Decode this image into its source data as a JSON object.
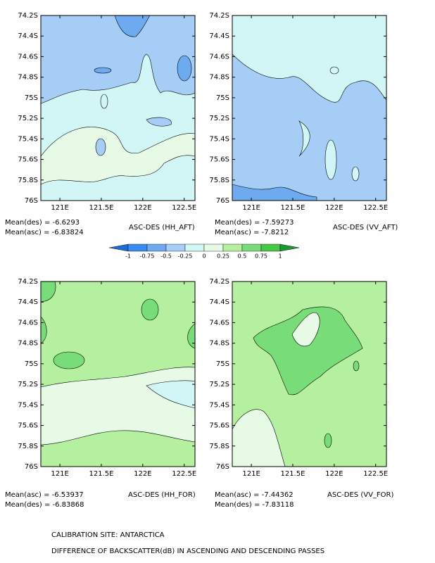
{
  "chart_data": [
    {
      "type": "contour",
      "title": "ASC-DES (HH_AFT)",
      "annotations": [
        "Mean(des) = -6.6293",
        "Mean(asc) = -6.83824"
      ],
      "xlim": [
        120.77,
        122.63
      ],
      "ylim": [
        76,
        74.2
      ],
      "xticks": [
        {
          "value": 121,
          "label": "121E"
        },
        {
          "value": 121.5,
          "label": "121.5E"
        },
        {
          "value": 122,
          "label": "122E"
        },
        {
          "value": 122.5,
          "label": "122.5E"
        }
      ],
      "yticks": [
        {
          "value": 74.2,
          "label": "74.2S"
        },
        {
          "value": 74.4,
          "label": "74.4S"
        },
        {
          "value": 74.6,
          "label": "74.6S"
        },
        {
          "value": 74.8,
          "label": "74.8S"
        },
        {
          "value": 75,
          "label": "75S"
        },
        {
          "value": 75.2,
          "label": "75.2S"
        },
        {
          "value": 75.4,
          "label": "75.4S"
        },
        {
          "value": 75.6,
          "label": "75.6S"
        },
        {
          "value": 75.8,
          "label": "75.8S"
        },
        {
          "value": 76,
          "label": "76S"
        }
      ]
    },
    {
      "type": "contour",
      "title": "ASC-DES (VV_AFT)",
      "annotations": [
        "Mean(des) = -7.59273",
        "Mean(asc) = -7.8212"
      ],
      "xlim": [
        120.77,
        122.63
      ],
      "ylim": [
        76,
        74.2
      ],
      "xticks": [
        {
          "value": 121,
          "label": "121E"
        },
        {
          "value": 121.5,
          "label": "121.5E"
        },
        {
          "value": 122,
          "label": "122E"
        },
        {
          "value": 122.5,
          "label": "122.5E"
        }
      ],
      "yticks": [
        {
          "value": 74.2,
          "label": "74.2S"
        },
        {
          "value": 74.4,
          "label": "74.4S"
        },
        {
          "value": 74.6,
          "label": "74.6S"
        },
        {
          "value": 74.8,
          "label": "74.8S"
        },
        {
          "value": 75,
          "label": "75S"
        },
        {
          "value": 75.2,
          "label": "75.2S"
        },
        {
          "value": 75.4,
          "label": "75.4S"
        },
        {
          "value": 75.6,
          "label": "75.6S"
        },
        {
          "value": 75.8,
          "label": "75.8S"
        },
        {
          "value": 76,
          "label": "76S"
        }
      ]
    },
    {
      "type": "contour",
      "title": "ASC-DES (HH_FOR)",
      "annotations": [
        "Mean(asc) = -6.53937",
        "Mean(des) = -6.83868"
      ],
      "xlim": [
        120.77,
        122.63
      ],
      "ylim": [
        76,
        74.2
      ],
      "xticks": [
        {
          "value": 121,
          "label": "121E"
        },
        {
          "value": 121.5,
          "label": "121.5E"
        },
        {
          "value": 122,
          "label": "122E"
        },
        {
          "value": 122.5,
          "label": "122.5E"
        }
      ],
      "yticks": [
        {
          "value": 74.2,
          "label": "74.2S"
        },
        {
          "value": 74.4,
          "label": "74.4S"
        },
        {
          "value": 74.6,
          "label": "74.6S"
        },
        {
          "value": 74.8,
          "label": "74.8S"
        },
        {
          "value": 75,
          "label": "75S"
        },
        {
          "value": 75.2,
          "label": "75.2S"
        },
        {
          "value": 75.4,
          "label": "75.4S"
        },
        {
          "value": 75.6,
          "label": "75.6S"
        },
        {
          "value": 75.8,
          "label": "75.8S"
        },
        {
          "value": 76,
          "label": "76S"
        }
      ]
    },
    {
      "type": "contour",
      "title": "ASC-DES (VV_FOR)",
      "annotations": [
        "Mean(asc) = -7.44362",
        "Mean(des) = -7.83118"
      ],
      "xlim": [
        120.77,
        122.63
      ],
      "ylim": [
        76,
        74.2
      ],
      "xticks": [
        {
          "value": 121,
          "label": "121E"
        },
        {
          "value": 121.5,
          "label": "121.5E"
        },
        {
          "value": 122,
          "label": "122E"
        },
        {
          "value": 122.5,
          "label": "122.5E"
        }
      ],
      "yticks": [
        {
          "value": 74.2,
          "label": "74.2S"
        },
        {
          "value": 74.4,
          "label": "74.4S"
        },
        {
          "value": 74.6,
          "label": "74.6S"
        },
        {
          "value": 74.8,
          "label": "74.8S"
        },
        {
          "value": 75,
          "label": "75S"
        },
        {
          "value": 75.2,
          "label": "75.2S"
        },
        {
          "value": 75.4,
          "label": "75.4S"
        },
        {
          "value": 75.6,
          "label": "75.6S"
        },
        {
          "value": 75.8,
          "label": "75.8S"
        },
        {
          "value": 76,
          "label": "76S"
        }
      ]
    }
  ],
  "colorbar": {
    "levels": [
      -1,
      -0.75,
      -0.5,
      -0.25,
      0,
      0.25,
      0.5,
      0.75,
      1
    ],
    "colors": [
      "#1e6ed2",
      "#3c8cf0",
      "#6eaaf0",
      "#a5cdf5",
      "#d2f5f5",
      "#e6fae6",
      "#b4f0a0",
      "#78dc78",
      "#46c846",
      "#1e9632"
    ]
  },
  "footer": [
    "CALIBRATION SITE: ANTARCTICA",
    "DIFFERENCE OF BACKSCATTER(dB) IN ASCENDING AND DESCENDING PASSES"
  ]
}
